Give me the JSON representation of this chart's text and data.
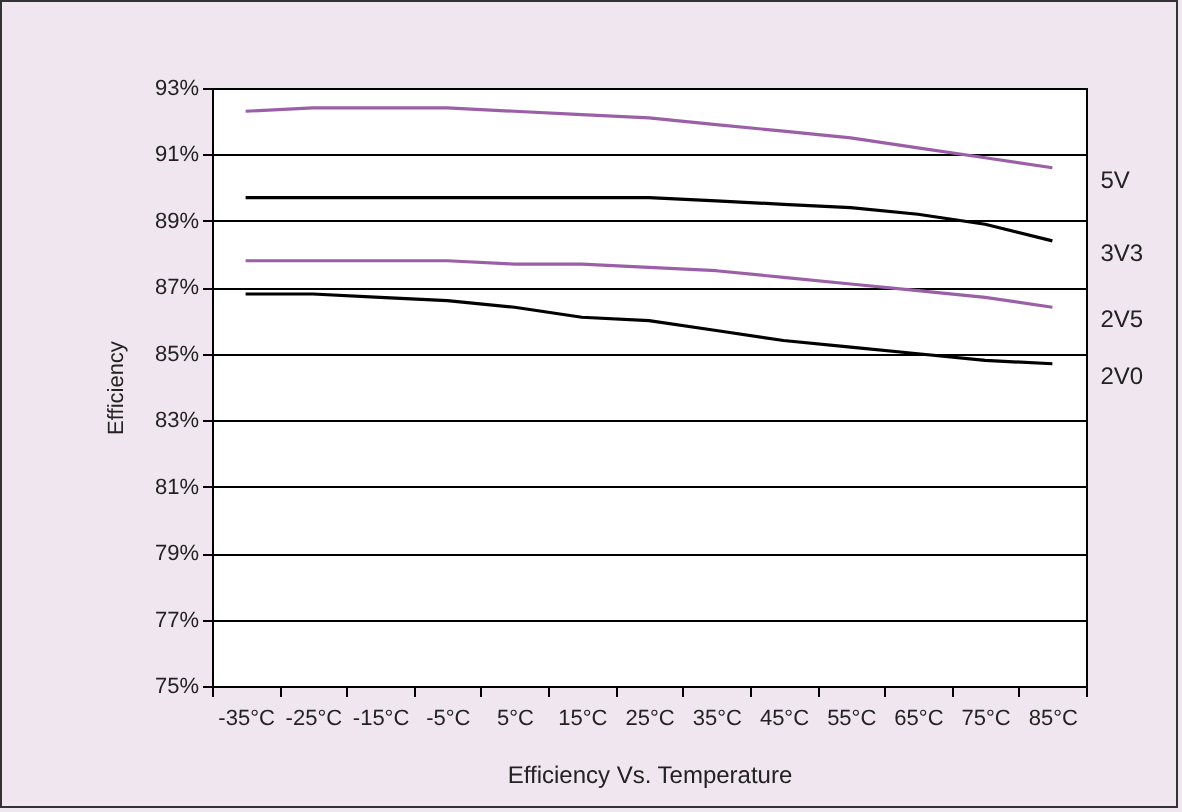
{
  "chart_data": {
    "type": "line",
    "xlabel": "Efficiency Vs. Temperature",
    "ylabel": "Efficiency",
    "categories": [
      "-35°C",
      "-25°C",
      "-15°C",
      "-5°C",
      "5°C",
      "15°C",
      "25°C",
      "35°C",
      "45°C",
      "55°C",
      "65°C",
      "75°C",
      "85°C"
    ],
    "series": [
      {
        "name": "5V",
        "color": "#9b5fa8",
        "values": [
          92.3,
          92.4,
          92.4,
          92.4,
          92.3,
          92.2,
          92.1,
          91.9,
          91.7,
          91.5,
          91.2,
          90.9,
          90.6
        ]
      },
      {
        "name": "3V3",
        "color": "#000000",
        "values": [
          89.7,
          89.7,
          89.7,
          89.7,
          89.7,
          89.7,
          89.7,
          89.6,
          89.5,
          89.4,
          89.2,
          88.9,
          88.4
        ]
      },
      {
        "name": "2V5",
        "color": "#9b5fa8",
        "values": [
          87.8,
          87.8,
          87.8,
          87.8,
          87.7,
          87.7,
          87.6,
          87.5,
          87.3,
          87.1,
          86.9,
          86.7,
          86.4
        ]
      },
      {
        "name": "2V0",
        "color": "#000000",
        "values": [
          86.8,
          86.8,
          86.7,
          86.6,
          86.4,
          86.1,
          86.0,
          85.7,
          85.4,
          85.2,
          85.0,
          84.8,
          84.7
        ]
      }
    ],
    "ylim": [
      75,
      93
    ],
    "yticks": [
      {
        "value": 75,
        "label": "75%"
      },
      {
        "value": 77,
        "label": "77%"
      },
      {
        "value": 79,
        "label": "79%"
      },
      {
        "value": 81,
        "label": "81%"
      },
      {
        "value": 83,
        "label": "83%"
      },
      {
        "value": 85,
        "label": "85%"
      },
      {
        "value": 87,
        "label": "87%"
      },
      {
        "value": 89,
        "label": "89%"
      },
      {
        "value": 91,
        "label": "91%"
      },
      {
        "value": 93,
        "label": "93%"
      }
    ],
    "grid": "y",
    "marker": "none",
    "line_style": "solid"
  }
}
